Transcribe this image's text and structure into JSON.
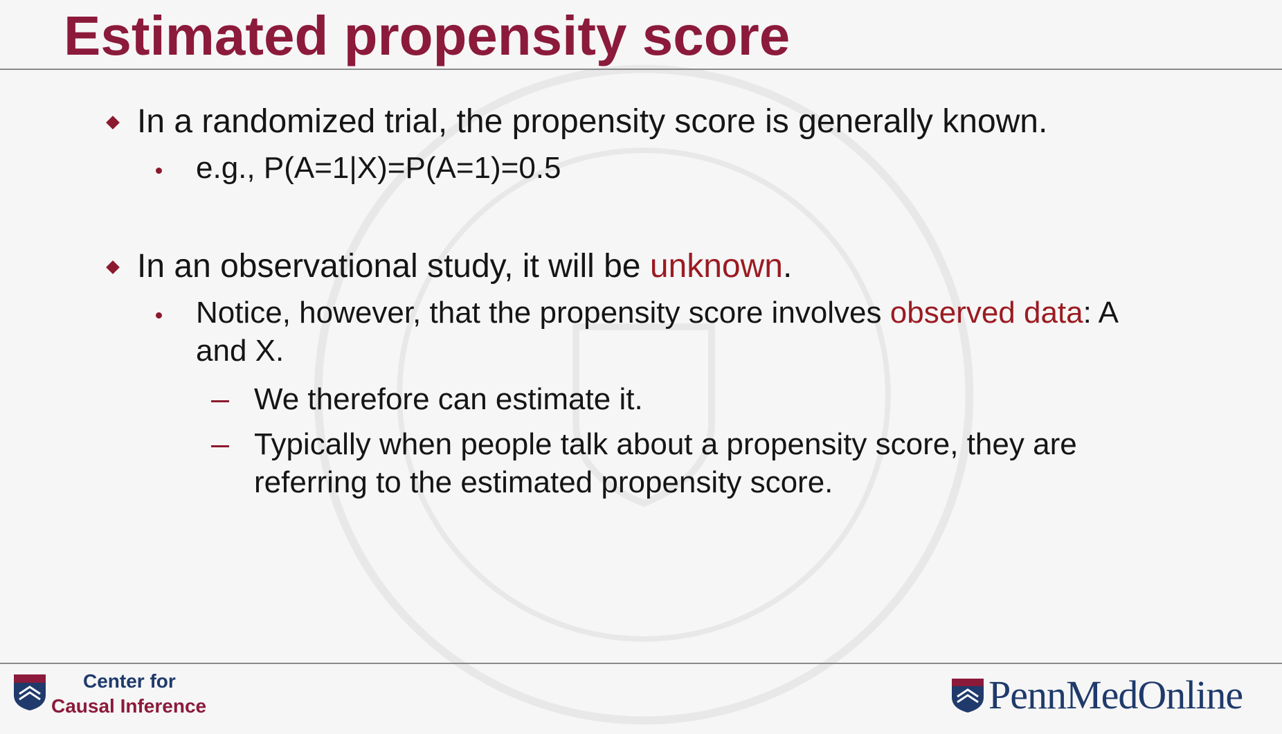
{
  "slide": {
    "title": "Estimated propensity score",
    "bullets": [
      {
        "text": "In a randomized trial, the propensity score is generally known."
      },
      {
        "text": "e.g., P(A=1|X)=P(A=1)=0.5"
      },
      {
        "pre": "In an observational study, it will be ",
        "highlight": "unknown",
        "post": "."
      },
      {
        "pre": "Notice, however, that the propensity score involves ",
        "highlight": "observed data",
        "post": ": A",
        "line2": "and X."
      },
      {
        "text": "We therefore can estimate it."
      },
      {
        "line1": "Typically when people talk about a propensity score, they are",
        "line2": "referring to the estimated propensity score."
      }
    ]
  },
  "footer": {
    "left_logo_line1": "Center for",
    "left_logo_line2": "Causal Inference",
    "right_logo_text": "PennMedOnline"
  },
  "colors": {
    "title": "#8b1a3b",
    "accent": "#9b1b22",
    "bullet": "#8b1a2e",
    "text": "#151515",
    "navy": "#1f3a6b"
  }
}
